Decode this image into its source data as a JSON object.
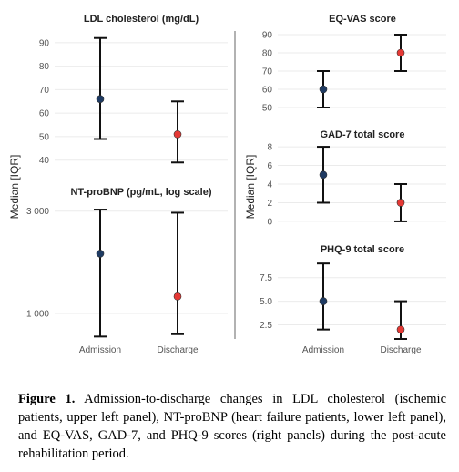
{
  "figure": {
    "left_ylabel": "Median [IQR]",
    "right_ylabel": "Median [IQR]",
    "x_categories": [
      "Admission",
      "Discharge"
    ],
    "colors": {
      "admission": "#1f3b63",
      "discharge": "#e53935",
      "whisker": "#111111"
    }
  },
  "chart_data": [
    {
      "type": "scatter",
      "title": "LDL cholesterol (mg/dL)",
      "categories": [
        "Admission",
        "Discharge"
      ],
      "median": [
        66,
        51
      ],
      "q1": [
        49,
        39
      ],
      "q3": [
        92,
        65
      ],
      "yticks": [
        40,
        50,
        60,
        70,
        80,
        90
      ],
      "ytick_labels": [
        "40",
        "50",
        "60",
        "70",
        "80",
        "90"
      ],
      "ylim": [
        36,
        95
      ],
      "log": false
    },
    {
      "type": "scatter",
      "title": "NT-proBNP (pg/mL, log scale)",
      "categories": [
        "Admission",
        "Discharge"
      ],
      "median": [
        1900,
        1200
      ],
      "q1": [
        780,
        800
      ],
      "q3": [
        3050,
        2950
      ],
      "yticks": [
        1000,
        3000
      ],
      "ytick_labels": [
        "1 000",
        "3 000"
      ],
      "ylim": [
        760,
        3300
      ],
      "log": true
    },
    {
      "type": "scatter",
      "title": "EQ-VAS score",
      "categories": [
        "Admission",
        "Discharge"
      ],
      "median": [
        60,
        80
      ],
      "q1": [
        50,
        70
      ],
      "q3": [
        70,
        90
      ],
      "yticks": [
        50,
        60,
        70,
        80,
        90
      ],
      "ytick_labels": [
        "50",
        "60",
        "70",
        "80",
        "90"
      ],
      "ylim": [
        48,
        92
      ],
      "log": false
    },
    {
      "type": "scatter",
      "title": "GAD-7 total score",
      "categories": [
        "Admission",
        "Discharge"
      ],
      "median": [
        5,
        2
      ],
      "q1": [
        2,
        0
      ],
      "q3": [
        8,
        4
      ],
      "yticks": [
        0,
        2,
        4,
        6,
        8
      ],
      "ytick_labels": [
        "0",
        "2",
        "4",
        "6",
        "8"
      ],
      "ylim": [
        -0.3,
        8.3
      ],
      "log": false
    },
    {
      "type": "scatter",
      "title": "PHQ-9 total score",
      "categories": [
        "Admission",
        "Discharge"
      ],
      "median": [
        5,
        2
      ],
      "q1": [
        2,
        1
      ],
      "q3": [
        9,
        5
      ],
      "yticks": [
        2.5,
        5.0,
        7.5
      ],
      "ytick_labels": [
        "2.5",
        "5.0",
        "7.5"
      ],
      "ylim": [
        1,
        9.5
      ],
      "log": false
    }
  ],
  "caption": {
    "label": "Figure 1.",
    "text": "Admission-to-discharge changes in LDL cholesterol (ischemic patients, upper left panel), NT-proBNP (heart failure patients, lower left panel), and EQ-VAS, GAD-7, and PHQ-9 scores (right panels) during the post-acute rehabilitation period."
  }
}
